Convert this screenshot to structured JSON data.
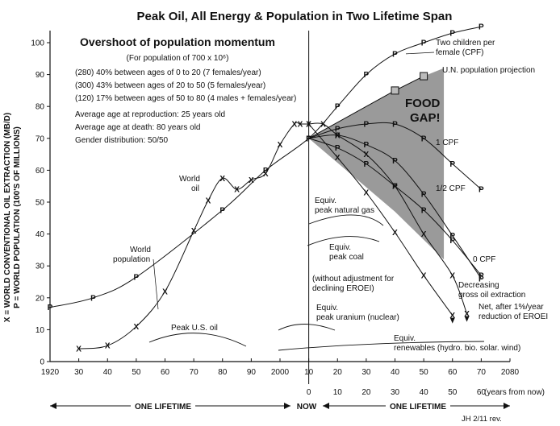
{
  "chart_data": {
    "type": "line",
    "title": "Peak Oil, All Energy & Population in Two Lifetime Span",
    "ylabel_line1": "X = WORLD CONVENTIONAL OIL EXTRACTION (MB/D)",
    "ylabel_line2": "P = WORLD POPULATION (100'S OF MILLIONS)",
    "ylim": [
      0,
      105
    ],
    "xlim": [
      1920,
      2080
    ],
    "y_ticks": [
      0,
      10,
      20,
      30,
      40,
      50,
      60,
      70,
      80,
      90,
      100
    ],
    "x_ticks": [
      {
        "year": 1920,
        "label": "1920"
      },
      {
        "year": 1930,
        "label": "30"
      },
      {
        "year": 1940,
        "label": "40"
      },
      {
        "year": 1950,
        "label": "50"
      },
      {
        "year": 1960,
        "label": "60"
      },
      {
        "year": 1970,
        "label": "70"
      },
      {
        "year": 1980,
        "label": "80"
      },
      {
        "year": 1990,
        "label": "90"
      },
      {
        "year": 2000,
        "label": "2000"
      },
      {
        "year": 2010,
        "label": "10"
      },
      {
        "year": 2020,
        "label": "20"
      },
      {
        "year": 2030,
        "label": "30"
      },
      {
        "year": 2040,
        "label": "40"
      },
      {
        "year": 2050,
        "label": "50"
      },
      {
        "year": 2060,
        "label": "60"
      },
      {
        "year": 2070,
        "label": "70"
      },
      {
        "year": 2080,
        "label": "2080"
      }
    ],
    "x_ticks2": [
      {
        "year": 2010,
        "label": "0"
      },
      {
        "year": 2020,
        "label": "10"
      },
      {
        "year": 2030,
        "label": "20"
      },
      {
        "year": 2040,
        "label": "30"
      },
      {
        "year": 2050,
        "label": "40"
      },
      {
        "year": 2060,
        "label": "50"
      },
      {
        "year": 2070,
        "label": "60"
      }
    ],
    "x_axis2_unit": "(years from now)",
    "lifetime_left": "ONE LIFETIME",
    "now_label": "NOW",
    "lifetime_right": "ONE LIFETIME",
    "revision": "JH 2/11 rev.",
    "overshoot": {
      "heading": "Overshoot of population momentum",
      "subheading": "(For population of 700 x 10⁶)",
      "lines": [
        "(280) 40% between ages of 0 to 20 (7 females/year)",
        "(300) 43% between ages of 20 to 50 (5 females/year)",
        "(120) 17% between ages of 50 to 80 (4 males + females/year)"
      ],
      "facts": [
        "Average age at reproduction: 25 years old",
        "Average age at death: 80 years old",
        "Gender distribution: 50/50"
      ]
    },
    "series": [
      {
        "name": "World population",
        "marker": "P",
        "points": [
          [
            1920,
            17
          ],
          [
            1935,
            20
          ],
          [
            1950,
            26.5
          ],
          [
            1980,
            47.5
          ],
          [
            1995,
            60
          ],
          [
            2010,
            70
          ],
          [
            2020,
            80
          ],
          [
            2030,
            90
          ],
          [
            2040,
            96.5
          ],
          [
            2050,
            100
          ],
          [
            2060,
            103
          ],
          [
            2070,
            105
          ]
        ]
      },
      {
        "name": "World oil",
        "marker": "X",
        "points": [
          [
            1930,
            4
          ],
          [
            1940,
            5
          ],
          [
            1950,
            11
          ],
          [
            1960,
            22
          ],
          [
            1970,
            41
          ],
          [
            1975,
            50.5
          ],
          [
            1980,
            57.5
          ],
          [
            1985,
            54
          ],
          [
            1990,
            57
          ],
          [
            1995,
            59
          ],
          [
            2000,
            68
          ],
          [
            2005,
            74.5
          ],
          [
            2007,
            74.5
          ],
          [
            2010,
            74.5
          ]
        ]
      },
      {
        "name": "1 CPF",
        "marker": "P",
        "points": [
          [
            2010,
            70
          ],
          [
            2020,
            73
          ],
          [
            2030,
            74.5
          ],
          [
            2040,
            74.5
          ],
          [
            2050,
            70
          ],
          [
            2060,
            62
          ],
          [
            2070,
            54
          ]
        ]
      },
      {
        "name": "1/2 CPF",
        "marker": "P",
        "points": [
          [
            2010,
            70
          ],
          [
            2020,
            71
          ],
          [
            2030,
            68
          ],
          [
            2040,
            63
          ],
          [
            2050,
            52.5
          ],
          [
            2060,
            39.5
          ],
          [
            2070,
            26
          ]
        ]
      },
      {
        "name": "0 CPF",
        "marker": "P",
        "points": [
          [
            2010,
            70
          ],
          [
            2020,
            67
          ],
          [
            2030,
            62
          ],
          [
            2040,
            55
          ],
          [
            2050,
            47.5
          ],
          [
            2060,
            38
          ],
          [
            2070,
            27
          ]
        ]
      },
      {
        "name": "Decreasing gross oil extraction",
        "marker": "X",
        "points": [
          [
            2010,
            74.5
          ],
          [
            2015,
            74.5
          ],
          [
            2020,
            71
          ],
          [
            2030,
            65
          ],
          [
            2040,
            55
          ],
          [
            2050,
            40
          ],
          [
            2060,
            27
          ],
          [
            2065,
            15
          ]
        ]
      },
      {
        "name": "Net, after 1%/year reduction of EROEI",
        "marker": "X",
        "points": [
          [
            2010,
            74.5
          ],
          [
            2020,
            64
          ],
          [
            2030,
            53
          ],
          [
            2040,
            40.5
          ],
          [
            2050,
            27
          ],
          [
            2060,
            14.5
          ]
        ]
      }
    ],
    "un_projection": {
      "label": "U.N. population projection",
      "points": [
        [
          2010,
          70
        ],
        [
          2040,
          85
        ],
        [
          2050,
          89.5
        ]
      ]
    },
    "food_gap": {
      "label_line1": "FOOD",
      "label_line2": "GAP!"
    },
    "labels": {
      "world_population_1": "World",
      "world_population_2": "population",
      "world_oil_1": "World",
      "world_oil_2": "oil",
      "two_children_1": "Two children per",
      "two_children_2": "female (CPF)",
      "cpf1": "1 CPF",
      "cpf_half": "1/2 CPF",
      "cpf0": "0 CPF",
      "decreasing_1": "Decreasing",
      "decreasing_2": "gross oil extraction",
      "net_1": "Net, after 1%/year",
      "net_2": "reduction of EROEI",
      "peak_us_oil": "Peak U.S. oil",
      "peak_gas_1": "Equiv.",
      "peak_gas_2": "peak natural gas",
      "peak_coal_1": "Equiv.",
      "peak_coal_2": "peak coal",
      "eroei_1": "(without adjustment for",
      "eroei_2": "declining EROEI)",
      "uranium_1": "Equiv.",
      "uranium_2": "peak uranium (nuclear)",
      "renew_1": "Equiv.",
      "renew_2": "renewables (hydro. bio. solar. wind)"
    },
    "grid": false,
    "colors": {
      "line": "#111111",
      "gap_fill": "#9a9a9a"
    }
  }
}
